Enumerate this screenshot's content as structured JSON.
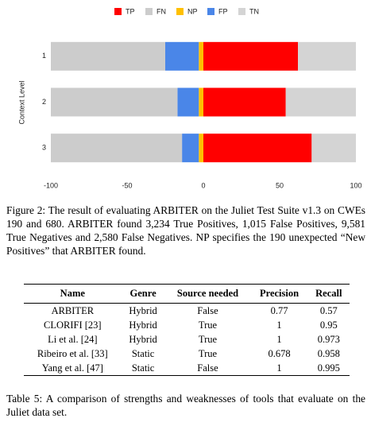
{
  "chart_data": {
    "type": "diverging-bar",
    "y_label": "Context Level",
    "categories": [
      "1",
      "2",
      "3"
    ],
    "series": [
      {
        "name": "TP",
        "color": "#ff0000",
        "values": [
          62,
          54,
          71
        ]
      },
      {
        "name": "FN",
        "color": "#cccccc",
        "values": [
          -75,
          -83,
          -86
        ]
      },
      {
        "name": "NP",
        "color": "#ffc000",
        "values": [
          -3,
          -3,
          -3
        ]
      },
      {
        "name": "FP",
        "color": "#4a86e8",
        "values": [
          -22,
          -14,
          -11
        ]
      },
      {
        "name": "TN",
        "color": "#d4d4d4",
        "values": [
          38,
          46,
          29
        ]
      }
    ],
    "xlim": [
      -100,
      100
    ],
    "xticks": [
      -100,
      -50,
      0,
      50,
      100
    ],
    "legend": "top"
  },
  "figure_caption": "Figure 2: The result of evaluating ARBITER on the Juliet Test Suite v1.3 on CWEs 190 and 680. ARBITER found 3,234 True Positives, 1,015 False Positives, 9,581 True Negatives and 2,580 False Negatives. NP specifies the 190 unexpected “New Positives” that ARBITER found.",
  "table": {
    "header": [
      "Name",
      "Genre",
      "Source needed",
      "Precision",
      "Recall"
    ],
    "rows": [
      [
        "ARBITER",
        "Hybrid",
        "False",
        "0.77",
        "0.57"
      ],
      [
        "CLORIFI [23]",
        "Hybrid",
        "True",
        "1",
        "0.95"
      ],
      [
        "Li et al. [24]",
        "Hybrid",
        "True",
        "1",
        "0.973"
      ],
      [
        "Ribeiro et al. [33]",
        "Static",
        "True",
        "0.678",
        "0.958"
      ],
      [
        "Yang et al. [47]",
        "Static",
        "False",
        "1",
        "0.995"
      ]
    ]
  },
  "table_caption": "Table 5: A comparison of strengths and weaknesses of tools that evaluate on the Juliet data set."
}
